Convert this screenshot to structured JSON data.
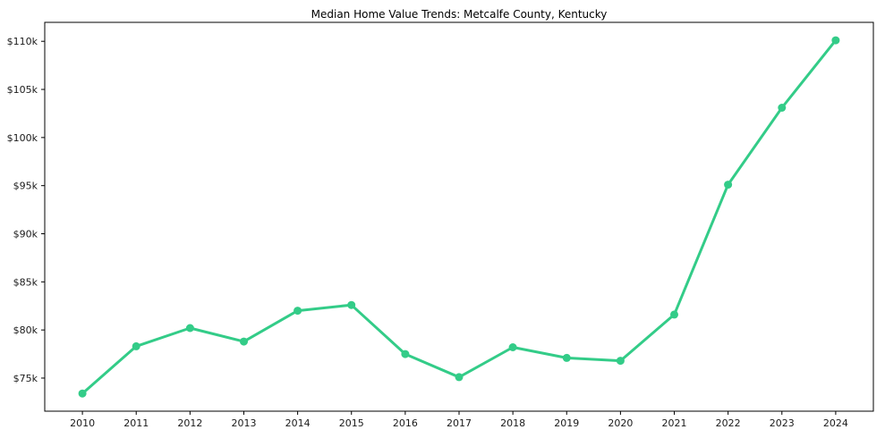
{
  "chart_data": {
    "type": "line",
    "title": "Median Home Value Trends: Metcalfe County, Kentucky",
    "xlabel": "",
    "ylabel": "",
    "x": [
      2010,
      2011,
      2012,
      2013,
      2014,
      2015,
      2016,
      2017,
      2018,
      2019,
      2020,
      2021,
      2022,
      2023,
      2024
    ],
    "xtick_labels": [
      "2010",
      "2011",
      "2012",
      "2013",
      "2014",
      "2015",
      "2016",
      "2017",
      "2018",
      "2019",
      "2020",
      "2021",
      "2022",
      "2023",
      "2024"
    ],
    "series": [
      {
        "name": "Median Home Value",
        "values": [
          73400,
          78300,
          80200,
          78800,
          82000,
          82600,
          77500,
          75100,
          78200,
          77100,
          76800,
          81600,
          95100,
          103100,
          110100
        ]
      }
    ],
    "values": [
      73400,
      78300,
      80200,
      78800,
      82000,
      82600,
      77500,
      75100,
      78200,
      77100,
      76800,
      81600,
      95100,
      103100,
      110100
    ],
    "ytick_values": [
      75000,
      80000,
      85000,
      90000,
      95000,
      100000,
      105000,
      110000
    ],
    "ytick_labels": [
      "$75k",
      "$80k",
      "$85k",
      "$90k",
      "$95k",
      "$100k",
      "$105k",
      "$110k"
    ],
    "xlim": [
      2009.3,
      2024.7
    ],
    "ylim": [
      71560,
      111970
    ],
    "grid": false,
    "legend": "none",
    "line_color": "#33cc88",
    "marker": "circle",
    "background_color": "#ffffff",
    "axis_color": "#000000"
  }
}
